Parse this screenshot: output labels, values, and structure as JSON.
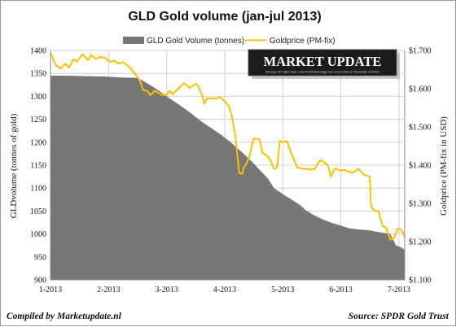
{
  "chart_data": {
    "type": "area+line",
    "title": "GLD Gold volume (jan-jul 2013)",
    "left_axis": {
      "label": "GLDvolume (tonnes of gold)",
      "min": 900,
      "max": 1400,
      "ticks": [
        "900",
        "950",
        "1000",
        "1050",
        "1100",
        "1150",
        "1200",
        "1250",
        "1300",
        "1350",
        "1400"
      ]
    },
    "right_axis": {
      "label": "Goldprice (PM-fix in USD)",
      "min": 1100,
      "max": 1700,
      "ticks": [
        "$1.100",
        "$1.200",
        "$1.300",
        "$1.400",
        "$1.500",
        "$1.600",
        "$1.700"
      ]
    },
    "x_axis": {
      "categories": [
        "1-2013",
        "2-2013",
        "3-2013",
        "4-2013",
        "5-2013",
        "6-2013",
        "7-2013"
      ],
      "start": 1,
      "end": 7.1
    },
    "grid": true,
    "legend_position": "top",
    "series": [
      {
        "name": "GLD Gold Volume (tonnes)",
        "kind": "area",
        "color": "#777777",
        "x": [
          1.0,
          1.02,
          1.3,
          1.6,
          1.95,
          2.2,
          2.5,
          2.62,
          2.8,
          3.0,
          3.2,
          3.4,
          3.6,
          3.8,
          3.95,
          4.1,
          4.3,
          4.45,
          4.6,
          4.75,
          4.85,
          5.0,
          5.15,
          5.3,
          5.4,
          5.55,
          5.7,
          5.85,
          6.0,
          6.15,
          6.3,
          6.5,
          6.6,
          6.75,
          6.85,
          6.95,
          7.05,
          7.1
        ],
        "values": [
          1344,
          1345,
          1345,
          1344,
          1343,
          1341,
          1340,
          1332,
          1318,
          1300,
          1283,
          1265,
          1245,
          1228,
          1215,
          1200,
          1178,
          1160,
          1140,
          1120,
          1100,
          1087,
          1075,
          1063,
          1051,
          1040,
          1031,
          1024,
          1018,
          1012,
          1010,
          1008,
          1005,
          1002,
          1000,
          975,
          970,
          965
        ]
      },
      {
        "name": "Goldprice (PM-fix)",
        "kind": "line",
        "color": "#FFC000",
        "x": [
          1.0,
          1.02,
          1.05,
          1.1,
          1.18,
          1.25,
          1.32,
          1.4,
          1.45,
          1.55,
          1.65,
          1.7,
          1.78,
          1.85,
          1.95,
          2.03,
          2.1,
          2.18,
          2.25,
          2.33,
          2.4,
          2.5,
          2.55,
          2.6,
          2.67,
          2.72,
          2.8,
          2.9,
          3.0,
          3.05,
          3.1,
          3.2,
          3.3,
          3.4,
          3.5,
          3.55,
          3.62,
          3.65,
          3.7,
          3.78,
          3.86,
          3.92,
          4.0,
          4.07,
          4.12,
          4.18,
          4.25,
          4.3,
          4.33,
          4.36,
          4.42,
          4.5,
          4.6,
          4.65,
          4.72,
          4.78,
          4.85,
          4.9,
          4.95,
          5.0,
          5.07,
          5.15,
          5.25,
          5.33,
          5.42,
          5.48,
          5.55,
          5.65,
          5.78,
          5.83,
          5.9,
          6.0,
          6.07,
          6.12,
          6.2,
          6.3,
          6.4,
          6.5,
          6.52,
          6.55,
          6.6,
          6.65,
          6.72,
          6.78,
          6.85,
          6.92,
          6.98,
          7.05,
          7.1
        ],
        "values": [
          1693,
          1688,
          1675,
          1660,
          1653,
          1665,
          1655,
          1678,
          1670,
          1690,
          1675,
          1688,
          1678,
          1683,
          1680,
          1670,
          1673,
          1665,
          1670,
          1660,
          1650,
          1630,
          1618,
          1596,
          1594,
          1583,
          1595,
          1584,
          1583,
          1595,
          1585,
          1600,
          1615,
          1602,
          1613,
          1605,
          1580,
          1560,
          1575,
          1574,
          1574,
          1578,
          1567,
          1555,
          1530,
          1480,
          1380,
          1377,
          1394,
          1400,
          1420,
          1470,
          1468,
          1432,
          1426,
          1415,
          1390,
          1393,
          1463,
          1460,
          1463,
          1430,
          1394,
          1391,
          1390,
          1389,
          1390,
          1414,
          1400,
          1370,
          1392,
          1385,
          1388,
          1383,
          1380,
          1390,
          1375,
          1370,
          1295,
          1285,
          1280,
          1280,
          1240,
          1237,
          1205,
          1210,
          1235,
          1230,
          1212
        ]
      }
    ]
  },
  "annotation": {
    "headline": "MARKET UPDATE",
    "tagline": "Stroogt 24/7 alles wat u niet in kranten krijgt over economie en financiële markten"
  },
  "colors": {
    "volume": "#777777",
    "price": "#FFC000",
    "grid": "#d0d0d0"
  },
  "footer": {
    "left": "Compiled by Marketupdate.nl",
    "right": "Source: SPDR Gold Trust"
  }
}
